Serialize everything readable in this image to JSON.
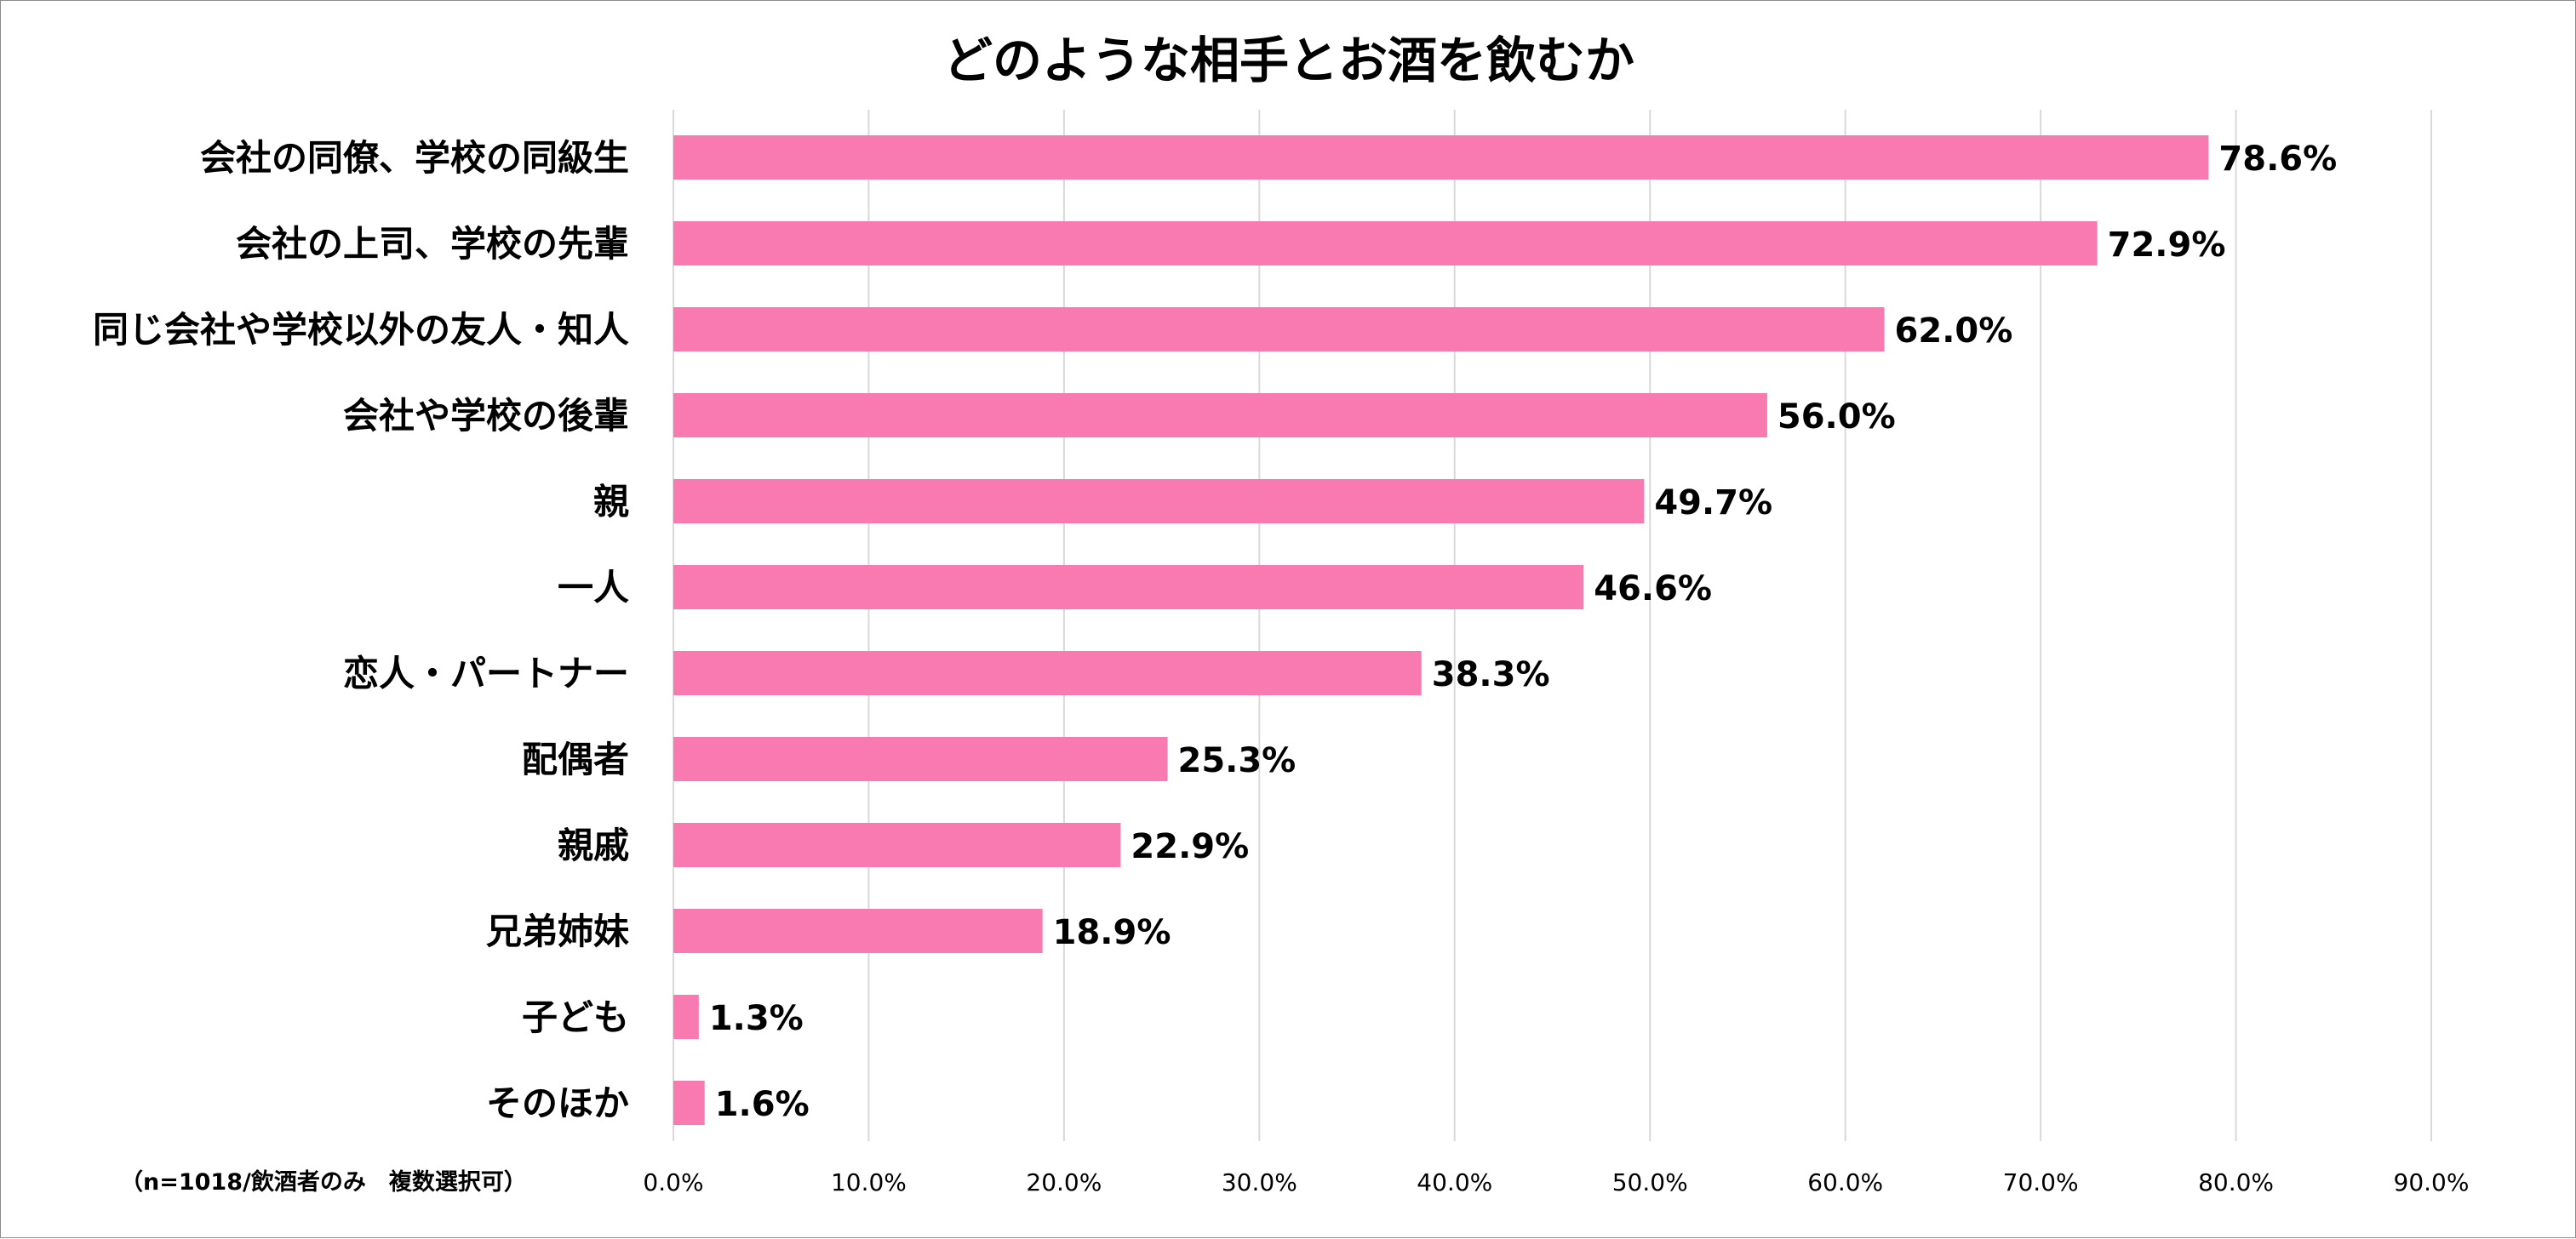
{
  "chart_data": {
    "type": "bar",
    "orientation": "horizontal",
    "title": "どのような相手とお酒を飲むか",
    "note": "（n=1018/飲酒者のみ　複数選択可）",
    "categories": [
      "会社の同僚、学校の同級生",
      "会社の上司、学校の先輩",
      "同じ会社や学校以外の友人・知人",
      "会社や学校の後輩",
      "親",
      "一人",
      "恋人・パートナー",
      "配偶者",
      "親戚",
      "兄弟姉妹",
      "子ども",
      "そのほか"
    ],
    "values": [
      78.6,
      72.9,
      62.0,
      56.0,
      49.7,
      46.6,
      38.3,
      25.3,
      22.9,
      18.9,
      1.3,
      1.6
    ],
    "value_labels": [
      "78.6%",
      "72.9%",
      "62.0%",
      "56.0%",
      "49.7%",
      "46.6%",
      "38.3%",
      "25.3%",
      "22.9%",
      "18.9%",
      "1.3%",
      "1.6%"
    ],
    "x_ticks": [
      0,
      10,
      20,
      30,
      40,
      50,
      60,
      70,
      80,
      90
    ],
    "x_tick_labels": [
      "0.0%",
      "10.0%",
      "20.0%",
      "30.0%",
      "40.0%",
      "50.0%",
      "60.0%",
      "70.0%",
      "80.0%",
      "90.0%"
    ],
    "xlim": [
      0,
      90
    ],
    "xlabel": "",
    "ylabel": "",
    "grid": "vertical",
    "legend": "none",
    "bar_color": "#f97ab0",
    "grid_color": "#d9d9d9"
  }
}
